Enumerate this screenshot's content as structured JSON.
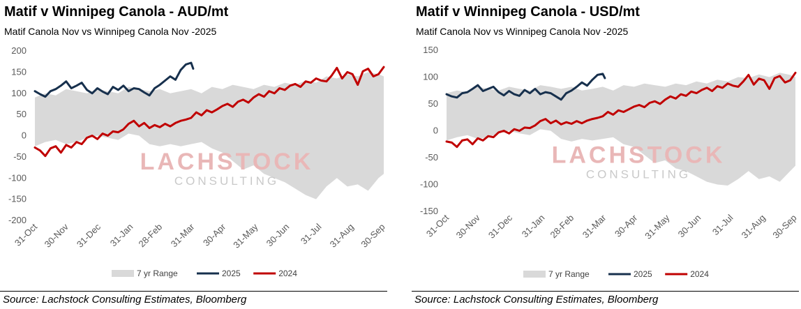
{
  "source": "Source: Lachstock Consulting Estimates, Bloomberg",
  "watermark": {
    "line1": "LACHSTOCK",
    "line2": "CONSULTING"
  },
  "colors": {
    "range": "#d9d9d9",
    "series_2025": "#17304d",
    "series_2024": "#c00000",
    "range_lower_accent": "#c6d4e8"
  },
  "charts": [
    {
      "title": "Matif v Winnipeg Canola - AUD/mt",
      "subtitle": "Matif Canola Nov vs Winnipeg Canola Nov -2025"
    },
    {
      "title": "Matif v Winnipeg Canola - USD/mt",
      "subtitle": "Matif Canola Nov vs Winnipeg Canola Nov -2025"
    }
  ],
  "chart_data": [
    {
      "type": "line",
      "title": "Matif v Winnipeg Canola - AUD/mt",
      "subtitle": "Matif Canola Nov vs Winnipeg Canola Nov -2025",
      "ylim": [
        -200,
        200
      ],
      "yticks": [
        -200,
        -150,
        -100,
        -50,
        0,
        50,
        100,
        150,
        200
      ],
      "xlim": [
        0,
        335
      ],
      "xtick_positions": [
        0,
        30,
        61,
        92,
        120,
        151,
        181,
        212,
        242,
        273,
        304,
        334
      ],
      "xtick_labels": [
        "31-Oct",
        "30-Nov",
        "31-Dec",
        "31-Jan",
        "28-Feb",
        "31-Mar",
        "30-Apr",
        "31-May",
        "30-Jun",
        "31-Jul",
        "31-Aug",
        "30-Sep"
      ],
      "grid": false,
      "legend_position": "bottom",
      "series": [
        {
          "name": "7 yr Range",
          "kind": "band",
          "x": [
            0,
            10,
            20,
            30,
            40,
            50,
            60,
            70,
            80,
            90,
            100,
            110,
            120,
            130,
            140,
            150,
            160,
            170,
            180,
            190,
            200,
            210,
            220,
            230,
            240,
            250,
            260,
            270,
            280,
            290,
            300,
            310,
            320,
            330,
            335
          ],
          "low": [
            -25,
            -15,
            -10,
            -20,
            -15,
            -5,
            0,
            -5,
            -10,
            5,
            0,
            -20,
            -25,
            -20,
            -25,
            -20,
            -15,
            -30,
            -40,
            -60,
            -80,
            -70,
            -90,
            -100,
            -110,
            -125,
            -140,
            -150,
            -120,
            -100,
            -120,
            -115,
            -130,
            -100,
            -90
          ],
          "high": [
            90,
            100,
            95,
            110,
            105,
            100,
            110,
            105,
            100,
            115,
            110,
            105,
            110,
            100,
            105,
            110,
            100,
            115,
            110,
            120,
            115,
            110,
            120,
            115,
            125,
            120,
            130,
            125,
            140,
            135,
            145,
            140,
            150,
            145,
            140
          ]
        },
        {
          "name": "2025",
          "kind": "line",
          "x": [
            0,
            5,
            10,
            15,
            20,
            25,
            30,
            35,
            40,
            45,
            50,
            55,
            60,
            65,
            70,
            75,
            80,
            85,
            90,
            95,
            100,
            105,
            110,
            115,
            120,
            125,
            130,
            135,
            140,
            145,
            150,
            152
          ],
          "y": [
            105,
            98,
            92,
            105,
            110,
            118,
            128,
            112,
            118,
            125,
            108,
            100,
            112,
            104,
            98,
            115,
            108,
            118,
            105,
            112,
            110,
            102,
            95,
            112,
            120,
            130,
            140,
            132,
            155,
            168,
            172,
            158
          ]
        },
        {
          "name": "2024",
          "kind": "line",
          "x": [
            0,
            5,
            10,
            15,
            20,
            25,
            30,
            35,
            40,
            45,
            50,
            55,
            60,
            65,
            70,
            75,
            80,
            85,
            90,
            95,
            100,
            105,
            110,
            115,
            120,
            125,
            130,
            135,
            140,
            145,
            150,
            155,
            160,
            165,
            170,
            175,
            180,
            185,
            190,
            195,
            200,
            205,
            210,
            215,
            220,
            225,
            230,
            235,
            240,
            245,
            250,
            255,
            260,
            265,
            270,
            275,
            280,
            285,
            290,
            295,
            300,
            305,
            310,
            315,
            320,
            325,
            330,
            335
          ],
          "y": [
            -28,
            -35,
            -48,
            -30,
            -25,
            -40,
            -22,
            -28,
            -15,
            -20,
            -5,
            0,
            -8,
            5,
            0,
            10,
            8,
            15,
            28,
            35,
            22,
            30,
            18,
            25,
            20,
            28,
            22,
            30,
            35,
            38,
            42,
            55,
            48,
            60,
            55,
            62,
            70,
            75,
            68,
            80,
            85,
            78,
            90,
            98,
            92,
            105,
            100,
            112,
            108,
            118,
            122,
            115,
            128,
            125,
            135,
            130,
            128,
            142,
            160,
            135,
            150,
            145,
            120,
            152,
            158,
            140,
            145,
            162
          ]
        }
      ],
      "legend": [
        {
          "label": "7 yr Range",
          "symbol": "band"
        },
        {
          "label": "2025",
          "symbol": "line"
        },
        {
          "label": "2024",
          "symbol": "line"
        }
      ]
    },
    {
      "type": "line",
      "title": "Matif v Winnipeg Canola - USD/mt",
      "subtitle": "Matif Canola Nov vs Winnipeg Canola Nov -2025",
      "ylim": [
        -150,
        150
      ],
      "yticks": [
        -150,
        -100,
        -50,
        0,
        50,
        100,
        150
      ],
      "xlim": [
        0,
        335
      ],
      "xtick_positions": [
        0,
        30,
        61,
        92,
        120,
        151,
        181,
        212,
        242,
        273,
        304,
        334
      ],
      "xtick_labels": [
        "31-Oct",
        "30-Nov",
        "31-Dec",
        "31-Jan",
        "28-Feb",
        "31-Mar",
        "30-Apr",
        "31-May",
        "30-Jun",
        "31-Jul",
        "31-Aug",
        "30-Sep"
      ],
      "grid": false,
      "legend_position": "bottom",
      "series": [
        {
          "name": "7 yr Range",
          "kind": "band",
          "x": [
            0,
            10,
            20,
            30,
            40,
            50,
            60,
            70,
            80,
            90,
            100,
            110,
            120,
            130,
            140,
            150,
            160,
            170,
            180,
            190,
            200,
            210,
            220,
            230,
            240,
            250,
            260,
            270,
            280,
            290,
            300,
            310,
            320,
            330,
            335
          ],
          "low": [
            -18,
            -12,
            -8,
            -15,
            -12,
            -5,
            0,
            -5,
            -8,
            3,
            0,
            -15,
            -20,
            -15,
            -18,
            -15,
            -12,
            -25,
            -30,
            -45,
            -60,
            -55,
            -70,
            -75,
            -85,
            -95,
            -100,
            -102,
            -90,
            -75,
            -90,
            -85,
            -95,
            -75,
            -65
          ],
          "high": [
            70,
            75,
            72,
            82,
            78,
            75,
            82,
            78,
            75,
            85,
            82,
            78,
            82,
            75,
            78,
            82,
            75,
            85,
            82,
            88,
            85,
            82,
            88,
            85,
            92,
            88,
            95,
            92,
            100,
            98,
            105,
            100,
            108,
            104,
            100
          ]
        },
        {
          "name": "2025",
          "kind": "line",
          "x": [
            0,
            5,
            10,
            15,
            20,
            25,
            30,
            35,
            40,
            45,
            50,
            55,
            60,
            65,
            70,
            75,
            80,
            85,
            90,
            95,
            100,
            105,
            110,
            115,
            120,
            125,
            130,
            135,
            140,
            145,
            150,
            152
          ],
          "y": [
            68,
            64,
            62,
            70,
            72,
            78,
            85,
            74,
            78,
            82,
            72,
            66,
            74,
            68,
            65,
            76,
            70,
            78,
            68,
            72,
            70,
            64,
            58,
            70,
            75,
            82,
            90,
            84,
            95,
            104,
            106,
            98
          ]
        },
        {
          "name": "2024",
          "kind": "line",
          "x": [
            0,
            5,
            10,
            15,
            20,
            25,
            30,
            35,
            40,
            45,
            50,
            55,
            60,
            65,
            70,
            75,
            80,
            85,
            90,
            95,
            100,
            105,
            110,
            115,
            120,
            125,
            130,
            135,
            140,
            145,
            150,
            155,
            160,
            165,
            170,
            175,
            180,
            185,
            190,
            195,
            200,
            205,
            210,
            215,
            220,
            225,
            230,
            235,
            240,
            245,
            250,
            255,
            260,
            265,
            270,
            275,
            280,
            285,
            290,
            295,
            300,
            305,
            310,
            315,
            320,
            325,
            330,
            335
          ],
          "y": [
            -20,
            -22,
            -30,
            -18,
            -16,
            -25,
            -14,
            -18,
            -10,
            -12,
            -3,
            0,
            -5,
            3,
            0,
            6,
            5,
            10,
            18,
            22,
            14,
            19,
            12,
            16,
            13,
            18,
            14,
            19,
            22,
            24,
            27,
            35,
            30,
            38,
            35,
            40,
            45,
            48,
            44,
            52,
            55,
            50,
            58,
            64,
            60,
            68,
            65,
            73,
            70,
            76,
            80,
            74,
            83,
            80,
            88,
            84,
            82,
            92,
            104,
            86,
            97,
            94,
            78,
            98,
            102,
            90,
            94,
            108
          ]
        }
      ],
      "legend": [
        {
          "label": "7 yr Range",
          "symbol": "band"
        },
        {
          "label": "2025",
          "symbol": "line"
        },
        {
          "label": "2024",
          "symbol": "line"
        }
      ]
    }
  ]
}
